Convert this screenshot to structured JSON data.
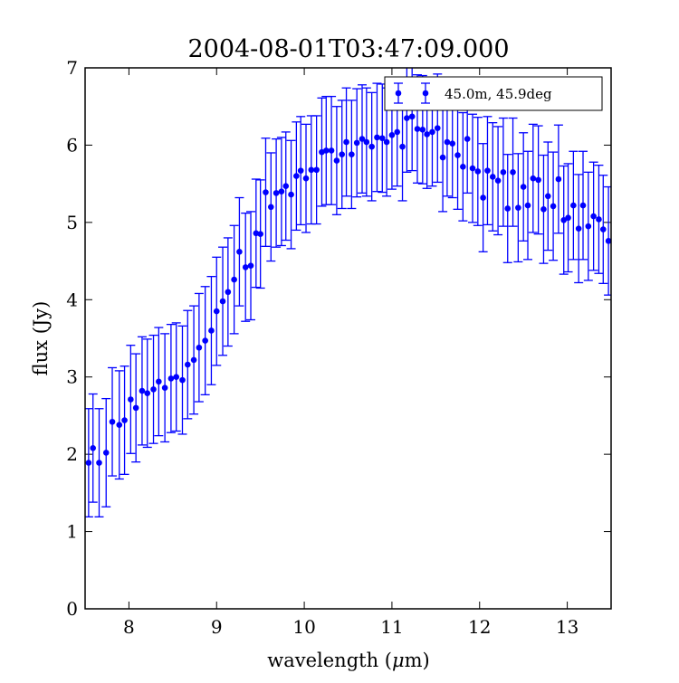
{
  "chart_data": {
    "type": "scatter",
    "title": "2004-08-01T03:47:09.000",
    "xlabel": "wavelength (",
    "xlabel_mu": "μ",
    "xlabel_end": "m)",
    "ylabel": "flux (Jy)",
    "xlim": [
      7.5,
      13.5
    ],
    "ylim": [
      0,
      7
    ],
    "xticks": [
      8,
      9,
      10,
      11,
      12,
      13
    ],
    "yticks": [
      0,
      1,
      2,
      3,
      4,
      5,
      6,
      7
    ],
    "x_tick_labels": [
      "8",
      "9",
      "10",
      "11",
      "12",
      "13"
    ],
    "y_tick_labels": [
      "0",
      "1",
      "2",
      "3",
      "4",
      "5",
      "6",
      "7"
    ],
    "grid": false,
    "legend_position": "top-right",
    "colors": {
      "series": "#0000ff",
      "axes": "#000000",
      "background": "#ffffff"
    },
    "series": [
      {
        "name": "45.0m, 45.9deg",
        "marker": "circle",
        "errorbars": true,
        "x": [
          7.54,
          7.59,
          7.66,
          7.74,
          7.81,
          7.89,
          7.95,
          8.02,
          8.08,
          8.15,
          8.21,
          8.28,
          8.34,
          8.41,
          8.48,
          8.54,
          8.61,
          8.67,
          8.74,
          8.8,
          8.87,
          8.94,
          9.0,
          9.07,
          9.13,
          9.2,
          9.26,
          9.33,
          9.39,
          9.45,
          9.5,
          9.56,
          9.62,
          9.68,
          9.74,
          9.79,
          9.85,
          9.91,
          9.96,
          10.02,
          10.08,
          10.14,
          10.2,
          10.25,
          10.31,
          10.37,
          10.43,
          10.48,
          10.54,
          10.6,
          10.66,
          10.71,
          10.77,
          10.83,
          10.89,
          10.94,
          11.0,
          11.06,
          11.12,
          11.17,
          11.23,
          11.29,
          11.35,
          11.4,
          11.46,
          11.52,
          11.58,
          11.63,
          11.69,
          11.75,
          11.81,
          11.86,
          11.92,
          11.98,
          12.04,
          12.09,
          12.15,
          12.21,
          12.27,
          12.32,
          12.38,
          12.44,
          12.5,
          12.55,
          12.61,
          12.67,
          12.73,
          12.78,
          12.84,
          12.9,
          12.96,
          13.01,
          13.07,
          13.13,
          13.18,
          13.24,
          13.3,
          13.36,
          13.41,
          13.47
        ],
        "y": [
          1.89,
          2.08,
          1.89,
          2.02,
          2.42,
          2.38,
          2.44,
          2.71,
          2.6,
          2.82,
          2.79,
          2.84,
          2.94,
          2.86,
          2.98,
          3.0,
          2.96,
          3.16,
          3.22,
          3.38,
          3.47,
          3.6,
          3.85,
          3.98,
          4.1,
          4.26,
          4.62,
          4.42,
          4.44,
          4.86,
          4.85,
          5.39,
          5.2,
          5.38,
          5.4,
          5.47,
          5.36,
          5.6,
          5.67,
          5.57,
          5.68,
          5.68,
          5.91,
          5.93,
          5.93,
          5.8,
          5.88,
          6.04,
          5.88,
          6.03,
          6.08,
          6.04,
          5.98,
          6.1,
          6.09,
          6.04,
          6.13,
          6.17,
          5.98,
          6.35,
          6.37,
          6.21,
          6.2,
          6.14,
          6.17,
          6.22,
          5.84,
          6.04,
          6.02,
          5.87,
          5.72,
          6.08,
          5.7,
          5.66,
          5.32,
          5.67,
          5.59,
          5.54,
          5.65,
          5.18,
          5.65,
          5.19,
          5.46,
          5.22,
          5.57,
          5.55,
          5.17,
          5.34,
          5.21,
          5.56,
          5.03,
          5.06,
          5.22,
          4.92,
          5.22,
          4.95,
          5.08,
          5.04,
          4.91,
          4.76
        ],
        "yerr": 0.7
      }
    ]
  }
}
